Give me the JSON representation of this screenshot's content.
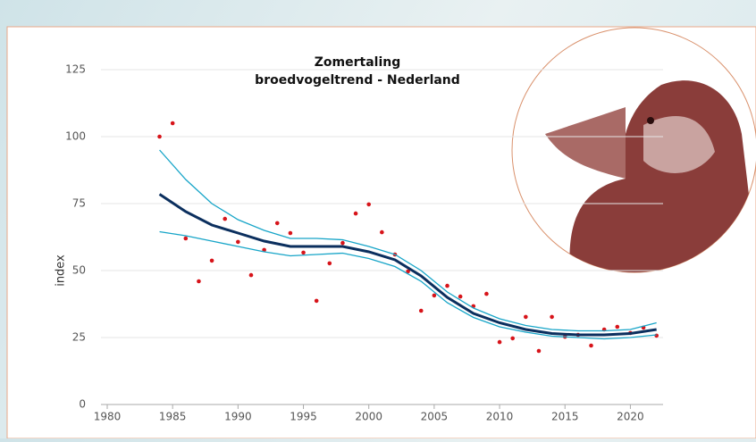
{
  "chart_data": {
    "type": "scatter",
    "title": "Zomertaling",
    "subtitle": "broedvogeltrend - Nederland",
    "y_label": "index",
    "xlim": [
      1980,
      2022.5
    ],
    "xticks": [
      1980,
      1985,
      1990,
      1995,
      2000,
      2005,
      2010,
      2015,
      2020
    ],
    "ylim": [
      0,
      125
    ],
    "yticks": [
      0,
      25,
      50,
      75,
      100,
      125
    ],
    "grid": true,
    "series": [
      {
        "type": "scatter",
        "color": "#d7141a",
        "x": [
          1984,
          1985,
          1986,
          1987,
          1988,
          1989,
          1990,
          1991,
          1992,
          1993,
          1994,
          1995,
          1996,
          1997,
          1998,
          1999,
          2000,
          2001,
          2002,
          2003,
          2004,
          2005,
          2006,
          2007,
          2008,
          2009,
          2010,
          2011,
          2012,
          2013,
          2014,
          2015,
          2016,
          2017,
          2018,
          2019,
          2020,
          2021,
          2022
        ],
        "values": [
          100,
          105,
          62,
          46,
          53.7,
          69.3,
          60.7,
          48.3,
          57.7,
          67.7,
          64,
          56.7,
          38.7,
          52.7,
          60.3,
          71.3,
          74.7,
          64.3,
          56,
          49.7,
          35,
          40.7,
          44.3,
          40.3,
          36.7,
          41.3,
          23.3,
          24.7,
          32.7,
          20,
          32.7,
          25.3,
          26,
          22,
          28,
          29,
          26.7,
          28.7,
          25.7
        ]
      },
      {
        "type": "line",
        "color": "#17a5c8",
        "width": 1.3,
        "x": [
          1984,
          1986,
          1988,
          1990,
          1992,
          1994,
          1996,
          1998,
          2000,
          2002,
          2004,
          2006,
          2008,
          2010,
          2012,
          2014,
          2016,
          2018,
          2020,
          2022
        ],
        "values": [
          95,
          84,
          75,
          69,
          65,
          62,
          62,
          61.5,
          59,
          56,
          50,
          42,
          36,
          32,
          29.5,
          28,
          27.5,
          27.5,
          28,
          30.5
        ]
      },
      {
        "type": "line",
        "color": "#17a5c8",
        "width": 1.3,
        "x": [
          1984,
          1986,
          1988,
          1990,
          1992,
          1994,
          1996,
          1998,
          2000,
          2002,
          2004,
          2006,
          2008,
          2010,
          2012,
          2014,
          2016,
          2018,
          2020,
          2022
        ],
        "values": [
          64.5,
          63,
          61,
          59,
          57,
          55.5,
          56,
          56.5,
          54.5,
          51.5,
          46,
          38,
          32.5,
          29,
          27,
          25.5,
          25,
          24.5,
          25,
          26
        ]
      },
      {
        "type": "line",
        "color": "#0b2f5e",
        "width": 3,
        "x": [
          1984,
          1986,
          1988,
          1990,
          1992,
          1994,
          1996,
          1998,
          2000,
          2002,
          2004,
          2006,
          2008,
          2010,
          2012,
          2014,
          2016,
          2018,
          2020,
          2022
        ],
        "values": [
          78.5,
          72,
          67,
          64,
          61,
          59,
          59,
          59,
          57,
          54,
          48,
          40,
          34,
          30.5,
          28,
          26.5,
          26,
          26,
          26.5,
          28
        ]
      }
    ]
  }
}
